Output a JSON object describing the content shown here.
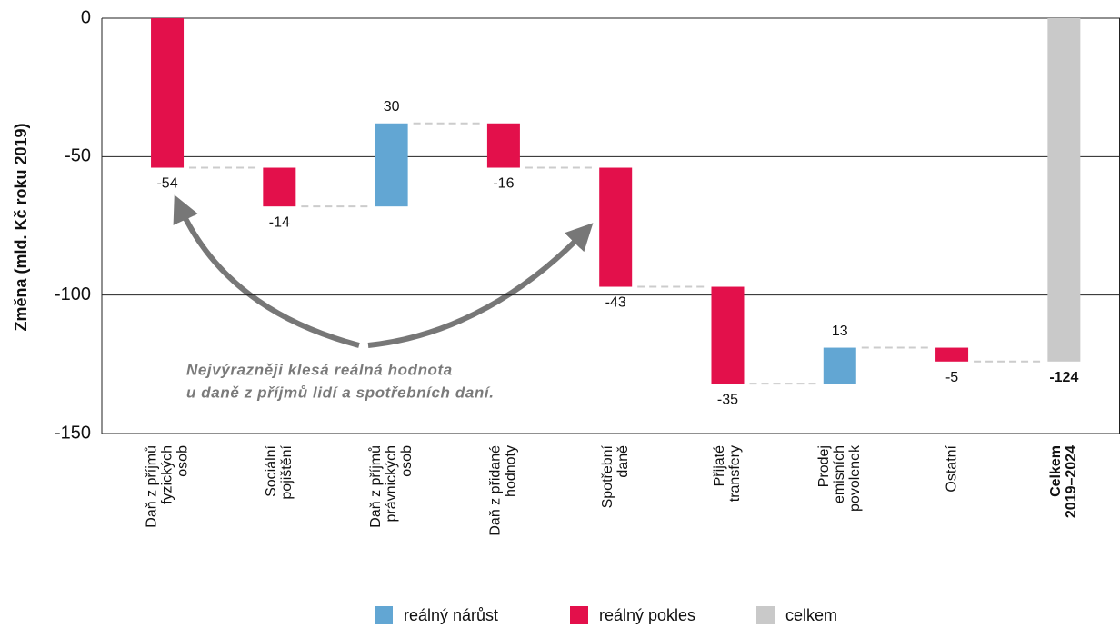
{
  "chart_data": {
    "type": "waterfall",
    "y_label": "Změna (mld. Kč roku 2019)",
    "categories": [
      [
        "Daň z příjmů",
        "fyzických",
        "osob"
      ],
      [
        "Sociální",
        "pojištění"
      ],
      [
        "Daň z příjmů",
        "právnických",
        "osob"
      ],
      [
        "Daň z přidané",
        "hodnoty"
      ],
      [
        "Spotřební",
        "daně"
      ],
      [
        "Přijaté",
        "transfery"
      ],
      [
        "Prodej",
        "emisních",
        "povolenek"
      ],
      [
        "Ostatní"
      ],
      [
        "Celkem",
        "2019–2024"
      ]
    ],
    "values": [
      -54,
      -14,
      30,
      -16,
      -43,
      -35,
      13,
      -5,
      -124
    ],
    "is_total": [
      false,
      false,
      false,
      false,
      false,
      false,
      false,
      false,
      true
    ],
    "ylim": [
      -150,
      0
    ],
    "yticks": [
      0,
      -50,
      -100,
      -150
    ],
    "grid": true,
    "legend": [
      {
        "name": "reálný nárůst",
        "color": "#62a6d3"
      },
      {
        "name": "reálný pokles",
        "color": "#e3104b"
      },
      {
        "name": "celkem",
        "color": "#c9c9c9"
      }
    ],
    "annotation": [
      "Nejvýrazněji klesá reálná hodnota",
      "u daně z příjmů lidí a spotřebních daní."
    ]
  }
}
